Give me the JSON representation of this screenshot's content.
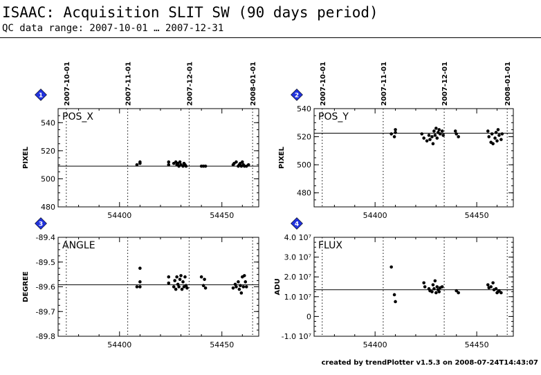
{
  "header": {
    "title": "ISAAC: Acquisition SLIT SW (90 days period)",
    "subtitle": "QC data range: 2007-10-01 … 2007-12-31"
  },
  "footer": {
    "credit": "created by trendPlotter v1.5.3 on 2008-07-24T14:43:07"
  },
  "colors": {
    "axis": "#000000",
    "points": "#000000",
    "badge": "#2233dd"
  },
  "chart_data": [
    {
      "type": "scatter",
      "panel_number": "1",
      "label": "POS_X",
      "ylabel": "PIXEL",
      "xlim": [
        54370,
        54468
      ],
      "ylim": [
        480,
        550
      ],
      "yticks": [
        480,
        500,
        520,
        540
      ],
      "ytick_labels": [
        "480",
        "500",
        "520",
        "540"
      ],
      "xticks": [
        54400,
        54450
      ],
      "xtick_labels": [
        "54400",
        "54450"
      ],
      "date_markers": [
        {
          "x": 54374,
          "label": "2007-10-01"
        },
        {
          "x": 54404,
          "label": "2007-11-01"
        },
        {
          "x": 54434,
          "label": "2007-12-01"
        },
        {
          "x": 54465,
          "label": "2008-01-01"
        }
      ],
      "reference": 509,
      "points": [
        [
          54408.5,
          510
        ],
        [
          54410,
          511
        ],
        [
          54410,
          512
        ],
        [
          54424,
          510
        ],
        [
          54424,
          512
        ],
        [
          54426.5,
          511
        ],
        [
          54427.5,
          512
        ],
        [
          54428,
          510
        ],
        [
          54428.5,
          511
        ],
        [
          54429,
          509
        ],
        [
          54429.5,
          512
        ],
        [
          54430,
          510
        ],
        [
          54431,
          509
        ],
        [
          54431.5,
          511
        ],
        [
          54432,
          510
        ],
        [
          54432.5,
          509
        ],
        [
          54440,
          509
        ],
        [
          54441,
          509
        ],
        [
          54442,
          509
        ],
        [
          54455.5,
          510
        ],
        [
          54456,
          511
        ],
        [
          54457,
          512
        ],
        [
          54458,
          509
        ],
        [
          54458.5,
          510
        ],
        [
          54459,
          511
        ],
        [
          54459.5,
          509
        ],
        [
          54460,
          512
        ],
        [
          54460.5,
          510
        ],
        [
          54461,
          509
        ],
        [
          54462,
          509
        ],
        [
          54463,
          510
        ]
      ]
    },
    {
      "type": "scatter",
      "panel_number": "2",
      "label": "POS_Y",
      "ylabel": "PIXEL",
      "xlim": [
        54370,
        54468
      ],
      "ylim": [
        470,
        540
      ],
      "yticks": [
        480,
        500,
        520,
        540
      ],
      "ytick_labels": [
        "480",
        "500",
        "520",
        "540"
      ],
      "xticks": [
        54400,
        54450
      ],
      "xtick_labels": [
        "54400",
        "54450"
      ],
      "date_markers": [
        {
          "x": 54374,
          "label": "2007-10-01"
        },
        {
          "x": 54404,
          "label": "2007-11-01"
        },
        {
          "x": 54434,
          "label": "2007-12-01"
        },
        {
          "x": 54465,
          "label": "2008-01-01"
        }
      ],
      "reference": 522.5,
      "points": [
        [
          54408,
          522
        ],
        [
          54409.5,
          520
        ],
        [
          54410,
          523
        ],
        [
          54410,
          525
        ],
        [
          54423,
          522
        ],
        [
          54424,
          519
        ],
        [
          54425.5,
          517
        ],
        [
          54426.5,
          521
        ],
        [
          54427,
          518
        ],
        [
          54428,
          520
        ],
        [
          54428.5,
          515
        ],
        [
          54429,
          524
        ],
        [
          54429.5,
          521
        ],
        [
          54430,
          526
        ],
        [
          54430.5,
          519
        ],
        [
          54431,
          523
        ],
        [
          54431.5,
          525
        ],
        [
          54432,
          522
        ],
        [
          54433,
          524
        ],
        [
          54433.5,
          521
        ],
        [
          54439.5,
          524
        ],
        [
          54440,
          522
        ],
        [
          54441,
          520
        ],
        [
          54455.5,
          524
        ],
        [
          54456,
          520
        ],
        [
          54457,
          516
        ],
        [
          54457.5,
          522
        ],
        [
          54458,
          515
        ],
        [
          54459,
          519
        ],
        [
          54459.5,
          523
        ],
        [
          54460,
          517
        ],
        [
          54460.5,
          525
        ],
        [
          54461,
          521
        ],
        [
          54462,
          518
        ],
        [
          54462.5,
          522
        ]
      ]
    },
    {
      "type": "scatter",
      "panel_number": "3",
      "label": "ANGLE",
      "ylabel": "DEGREE",
      "xlim": [
        54370,
        54468
      ],
      "ylim": [
        -89.8,
        -89.4
      ],
      "yticks": [
        -89.8,
        -89.7,
        -89.6,
        -89.5,
        -89.4
      ],
      "ytick_labels": [
        "-89.8",
        "-89.7",
        "-89.6",
        "-89.5",
        "-89.4"
      ],
      "xticks": [
        54400,
        54450
      ],
      "xtick_labels": [
        "54400",
        "54450"
      ],
      "date_markers": [
        {
          "x": 54374,
          "label": "2007-10-01"
        },
        {
          "x": 54404,
          "label": "2007-11-01"
        },
        {
          "x": 54434,
          "label": "2007-12-01"
        },
        {
          "x": 54465,
          "label": "2008-01-01"
        }
      ],
      "reference": -89.592,
      "points": [
        [
          54408.5,
          -89.6
        ],
        [
          54410,
          -89.525
        ],
        [
          54410,
          -89.58
        ],
        [
          54410,
          -89.6
        ],
        [
          54424,
          -89.56
        ],
        [
          54424,
          -89.585
        ],
        [
          54426.5,
          -89.6
        ],
        [
          54427,
          -89.575
        ],
        [
          54427.5,
          -89.61
        ],
        [
          54428,
          -89.56
        ],
        [
          54428.5,
          -89.59
        ],
        [
          54429,
          -89.6
        ],
        [
          54429.5,
          -89.57
        ],
        [
          54430,
          -89.555
        ],
        [
          54430.5,
          -89.61
        ],
        [
          54431,
          -89.58
        ],
        [
          54431.5,
          -89.6
        ],
        [
          54432,
          -89.56
        ],
        [
          54432.5,
          -89.595
        ],
        [
          54433,
          -89.605
        ],
        [
          54440,
          -89.56
        ],
        [
          54441,
          -89.595
        ],
        [
          54441.5,
          -89.57
        ],
        [
          54442,
          -89.605
        ],
        [
          54455.5,
          -89.605
        ],
        [
          54456.5,
          -89.59
        ],
        [
          54457,
          -89.6
        ],
        [
          54458,
          -89.58
        ],
        [
          54458.5,
          -89.61
        ],
        [
          54459,
          -89.595
        ],
        [
          54459.5,
          -89.625
        ],
        [
          54460,
          -89.56
        ],
        [
          54460.5,
          -89.6
        ],
        [
          54461,
          -89.555
        ],
        [
          54461.5,
          -89.58
        ],
        [
          54462,
          -89.6
        ]
      ]
    },
    {
      "type": "scatter",
      "panel_number": "4",
      "label": "FLUX",
      "ylabel": "ADU",
      "xlim": [
        54370,
        54468
      ],
      "ylim": [
        -10000000,
        40000000
      ],
      "yticks": [
        -10000000,
        0,
        10000000,
        20000000,
        30000000,
        40000000
      ],
      "ytick_labels": [
        "-1.0 10⁷",
        "0",
        "1.0 10⁷",
        "2.0 10⁷",
        "3.0 10⁷",
        "4.0 10⁷"
      ],
      "xticks": [
        54400,
        54450
      ],
      "xtick_labels": [
        "54400",
        "54450"
      ],
      "date_markers": [
        {
          "x": 54374,
          "label": "2007-10-01"
        },
        {
          "x": 54404,
          "label": "2007-11-01"
        },
        {
          "x": 54434,
          "label": "2007-12-01"
        },
        {
          "x": 54465,
          "label": "2008-01-01"
        }
      ],
      "reference": 13500000,
      "points": [
        [
          54408,
          25000000
        ],
        [
          54409.5,
          11000000
        ],
        [
          54410,
          7500000
        ],
        [
          54424,
          17000000
        ],
        [
          54424.5,
          15000000
        ],
        [
          54426.5,
          14000000
        ],
        [
          54427,
          13000000
        ],
        [
          54428,
          12500000
        ],
        [
          54428.5,
          16000000
        ],
        [
          54429,
          14000000
        ],
        [
          54429.5,
          18000000
        ],
        [
          54430,
          12000000
        ],
        [
          54430.5,
          15000000
        ],
        [
          54431,
          13500000
        ],
        [
          54431.5,
          12500000
        ],
        [
          54432,
          14500000
        ],
        [
          54433,
          15000000
        ],
        [
          54440,
          13000000
        ],
        [
          54441,
          12000000
        ],
        [
          54455.5,
          16000000
        ],
        [
          54456,
          14500000
        ],
        [
          54457,
          15000000
        ],
        [
          54458,
          17000000
        ],
        [
          54458.5,
          13500000
        ],
        [
          54459.5,
          14000000
        ],
        [
          54460,
          12000000
        ],
        [
          54460.5,
          12500000
        ],
        [
          54461,
          13000000
        ],
        [
          54462,
          12000000
        ]
      ]
    }
  ]
}
